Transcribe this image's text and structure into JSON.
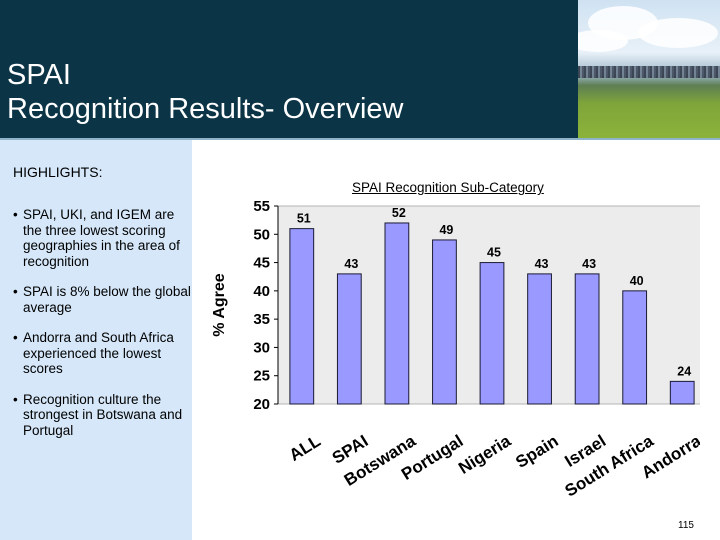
{
  "slide": {
    "title_line1": "SPAI",
    "title_line2": "Recognition Results- Overview",
    "page_number": "115"
  },
  "sidebar": {
    "heading": "HIGHLIGHTS:",
    "bullet_marker": "•",
    "bullets": [
      "SPAI, UKI, and IGEM are the three lowest scoring geographies in the area of recognition",
      "SPAI is 8% below the global average",
      "Andorra and South Africa experienced the lowest scores",
      "Recognition culture the strongest in Botswana and Portugal"
    ]
  },
  "chart_data": {
    "type": "bar",
    "title": "SPAI Recognition Sub-Category",
    "xlabel": "",
    "ylabel": "% Agree",
    "categories": [
      "ALL",
      "SPAI",
      "Botswana",
      "Portugal",
      "Nigeria",
      "Spain",
      "Israel",
      "South Africa",
      "Andorra"
    ],
    "values": [
      51,
      43,
      52,
      49,
      45,
      43,
      43,
      40,
      24
    ],
    "ylim": [
      20,
      55
    ],
    "yticks": [
      55,
      50,
      45,
      40,
      35,
      30,
      25,
      20
    ],
    "grid": false,
    "legend": "none",
    "bar_color": "#9999ff",
    "bar_border_color": "#1a1a33",
    "plot_background": "#ececec"
  }
}
